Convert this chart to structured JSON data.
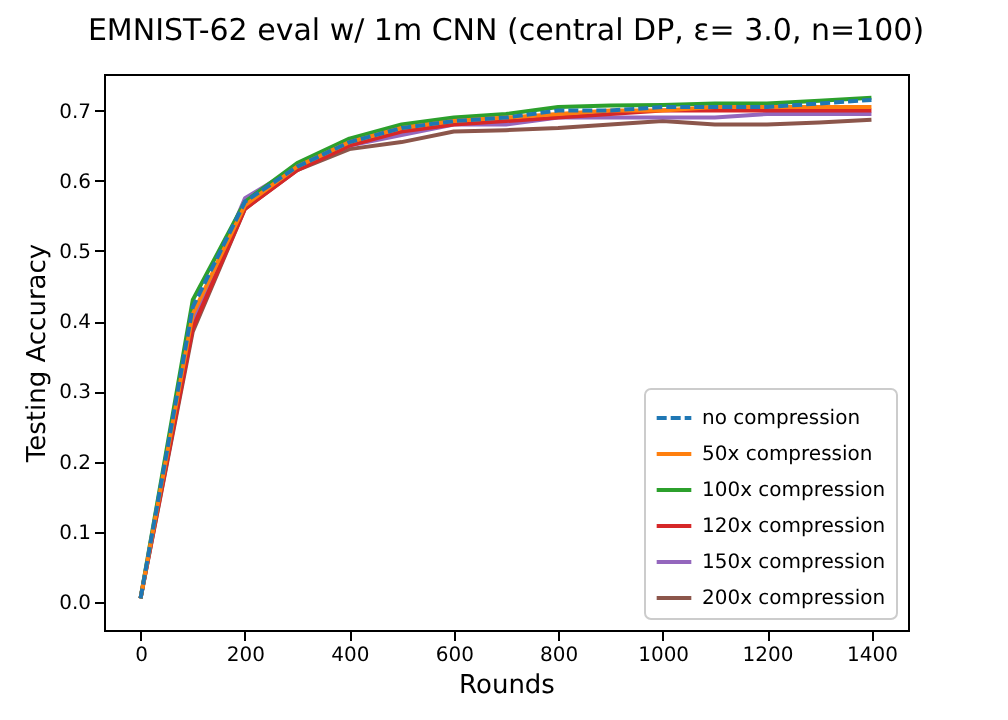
{
  "chart_data": {
    "type": "line",
    "title": "EMNIST-62 eval w/ 1m CNN (central DP, ε= 3.0, n=100)",
    "xlabel": "Rounds",
    "ylabel": "Testing Accuracy",
    "x": [
      0,
      100,
      200,
      300,
      400,
      500,
      600,
      700,
      800,
      900,
      1000,
      1100,
      1200,
      1300,
      1400
    ],
    "xlim": [
      -70,
      1470
    ],
    "xticks": [
      0,
      200,
      400,
      600,
      800,
      1000,
      1200,
      1400
    ],
    "ylim": [
      -0.04,
      0.752
    ],
    "yticks": [
      {
        "value": 0,
        "label": "0.0"
      },
      0.1,
      0.2,
      0.3,
      0.4,
      0.5,
      0.6,
      0.7
    ],
    "grid": false,
    "legend": "bottom right",
    "series": [
      {
        "name": "no compression",
        "color": "#1f77b4",
        "line_style": "dashed",
        "values": [
          0.005,
          0.42,
          0.57,
          0.62,
          0.655,
          0.675,
          0.685,
          0.69,
          0.7,
          0.7,
          0.705,
          0.705,
          0.705,
          0.71,
          0.715
        ]
      },
      {
        "name": "50x compression",
        "color": "#ff7f0e",
        "values": [
          0.005,
          0.41,
          0.565,
          0.62,
          0.655,
          0.675,
          0.685,
          0.69,
          0.695,
          0.7,
          0.7,
          0.705,
          0.705,
          0.705,
          0.705
        ]
      },
      {
        "name": "100x compression",
        "color": "#2ca02c",
        "values": [
          0.005,
          0.43,
          0.57,
          0.625,
          0.66,
          0.68,
          0.69,
          0.695,
          0.705,
          0.707,
          0.708,
          0.71,
          0.71,
          0.714,
          0.718
        ]
      },
      {
        "name": "120x compression",
        "color": "#d62728",
        "values": [
          0.005,
          0.39,
          0.56,
          0.615,
          0.65,
          0.67,
          0.68,
          0.685,
          0.69,
          0.695,
          0.7,
          0.7,
          0.7,
          0.7,
          0.7
        ]
      },
      {
        "name": "150x compression",
        "color": "#9467bd",
        "values": [
          0.005,
          0.4,
          0.575,
          0.62,
          0.65,
          0.665,
          0.68,
          0.68,
          0.69,
          0.69,
          0.69,
          0.69,
          0.695,
          0.695,
          0.695
        ]
      },
      {
        "name": "200x compression",
        "color": "#8c564b",
        "values": [
          0.005,
          0.385,
          0.56,
          0.615,
          0.645,
          0.655,
          0.67,
          0.672,
          0.675,
          0.68,
          0.685,
          0.68,
          0.68,
          0.683,
          0.687
        ]
      }
    ]
  }
}
